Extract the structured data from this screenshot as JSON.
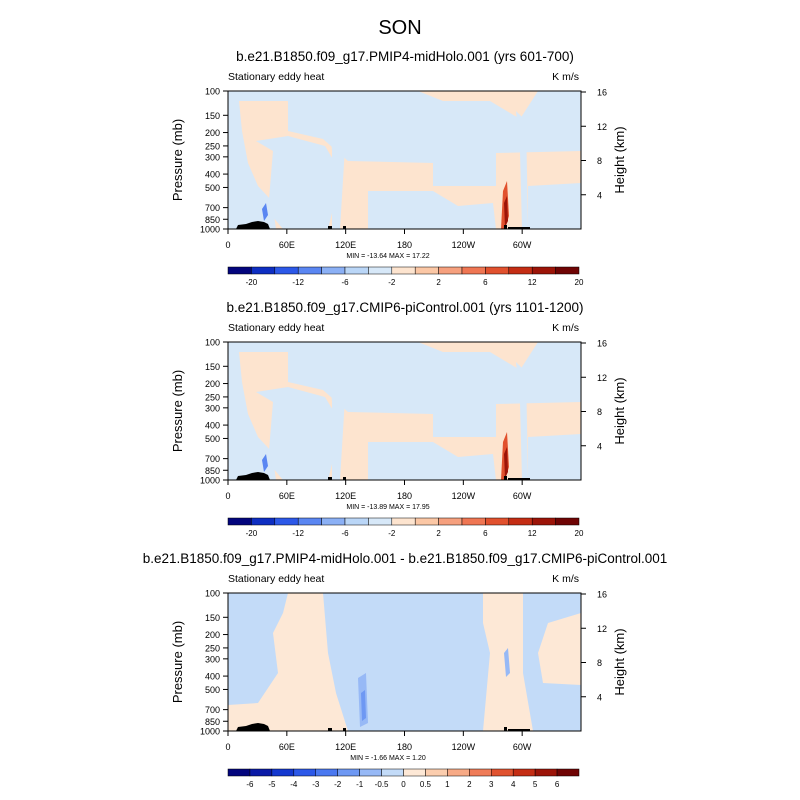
{
  "figure": {
    "title": "SON"
  },
  "chart_data": [
    {
      "type": "heatmap",
      "title": "b.e21.B1850.f09_g17.PMIP4-midHolo.001 (yrs 601-700)",
      "left_label": "Stationary eddy heat",
      "units": "K m/s",
      "ylabel": "Pressure (mb)",
      "ylabel_right": "Height (km)",
      "x_ticks": [
        "0",
        "60E",
        "120E",
        "180",
        "120W",
        "60W"
      ],
      "x_tick_lon": [
        0,
        60,
        120,
        180,
        240,
        300
      ],
      "xlim": [
        0,
        360
      ],
      "y_ticks": [
        "100",
        "150",
        "200",
        "250",
        "300",
        "400",
        "500",
        "700",
        "850",
        "1000"
      ],
      "y_tick_values": [
        100,
        150,
        200,
        250,
        300,
        400,
        500,
        700,
        850,
        1000
      ],
      "ylim": [
        1000,
        100
      ],
      "y_scale": "log",
      "right_ticks": [
        "4",
        "8",
        "12",
        "16"
      ],
      "right_tick_values": [
        4,
        8,
        12,
        16
      ],
      "stats": "MIN = -13.64  MAX =  17.22",
      "min": -13.64,
      "max": 17.22,
      "colorbar_labels": [
        "-20",
        "-12",
        "-6",
        "-2",
        "2",
        "6",
        "12",
        "20"
      ],
      "colorbar_colors": [
        "#03057d",
        "#0e2ec2",
        "#2c58e8",
        "#5a86f2",
        "#8bb0f5",
        "#bad6f7",
        "#d7e8f8",
        "#fde4cf",
        "#fbc7a5",
        "#f6a07e",
        "#ef7653",
        "#e1512e",
        "#c42d14",
        "#9c1408",
        "#6f0404"
      ]
    },
    {
      "type": "heatmap",
      "title": "b.e21.B1850.f09_g17.CMIP6-piControl.001 (yrs 1101-1200)",
      "left_label": "Stationary eddy heat",
      "units": "K m/s",
      "ylabel": "Pressure (mb)",
      "ylabel_right": "Height (km)",
      "x_ticks": [
        "0",
        "60E",
        "120E",
        "180",
        "120W",
        "60W"
      ],
      "x_tick_lon": [
        0,
        60,
        120,
        180,
        240,
        300
      ],
      "xlim": [
        0,
        360
      ],
      "y_ticks": [
        "100",
        "150",
        "200",
        "250",
        "300",
        "400",
        "500",
        "700",
        "850",
        "1000"
      ],
      "y_tick_values": [
        100,
        150,
        200,
        250,
        300,
        400,
        500,
        700,
        850,
        1000
      ],
      "ylim": [
        1000,
        100
      ],
      "y_scale": "log",
      "right_ticks": [
        "4",
        "8",
        "12",
        "16"
      ],
      "right_tick_values": [
        4,
        8,
        12,
        16
      ],
      "stats": "MIN = -13.89  MAX =  17.95",
      "min": -13.89,
      "max": 17.95,
      "colorbar_labels": [
        "-20",
        "-12",
        "-6",
        "-2",
        "2",
        "6",
        "12",
        "20"
      ],
      "colorbar_colors": [
        "#03057d",
        "#0e2ec2",
        "#2c58e8",
        "#5a86f2",
        "#8bb0f5",
        "#bad6f7",
        "#d7e8f8",
        "#fde4cf",
        "#fbc7a5",
        "#f6a07e",
        "#ef7653",
        "#e1512e",
        "#c42d14",
        "#9c1408",
        "#6f0404"
      ]
    },
    {
      "type": "heatmap",
      "title": "b.e21.B1850.f09_g17.PMIP4-midHolo.001 - b.e21.B1850.f09_g17.CMIP6-piControl.001",
      "left_label": "Stationary eddy heat",
      "units": "K m/s",
      "ylabel": "Pressure (mb)",
      "ylabel_right": "Height (km)",
      "x_ticks": [
        "0",
        "60E",
        "120E",
        "180",
        "120W",
        "60W"
      ],
      "x_tick_lon": [
        0,
        60,
        120,
        180,
        240,
        300
      ],
      "xlim": [
        0,
        360
      ],
      "y_ticks": [
        "100",
        "150",
        "200",
        "250",
        "300",
        "400",
        "500",
        "700",
        "850",
        "1000"
      ],
      "y_tick_values": [
        100,
        150,
        200,
        250,
        300,
        400,
        500,
        700,
        850,
        1000
      ],
      "ylim": [
        1000,
        100
      ],
      "y_scale": "log",
      "right_ticks": [
        "4",
        "8",
        "12",
        "16"
      ],
      "right_tick_values": [
        4,
        8,
        12,
        16
      ],
      "stats": "MIN = -1.66  MAX =  1.20",
      "min": -1.66,
      "max": 1.2,
      "colorbar_labels": [
        "-6",
        "-5",
        "-4",
        "-3",
        "-2",
        "-1",
        "-0.5",
        "0",
        "0.5",
        "1",
        "2",
        "3",
        "4",
        "5",
        "6"
      ],
      "colorbar_colors": [
        "#03057d",
        "#0a1aa6",
        "#1438cf",
        "#2c58e8",
        "#4a78f0",
        "#6e98f3",
        "#97b9f6",
        "#c3dbf8",
        "#fde8d6",
        "#fbcdae",
        "#f7aa86",
        "#ef7c58",
        "#e0522f",
        "#c42d14",
        "#9c1408",
        "#6f0404"
      ]
    }
  ]
}
